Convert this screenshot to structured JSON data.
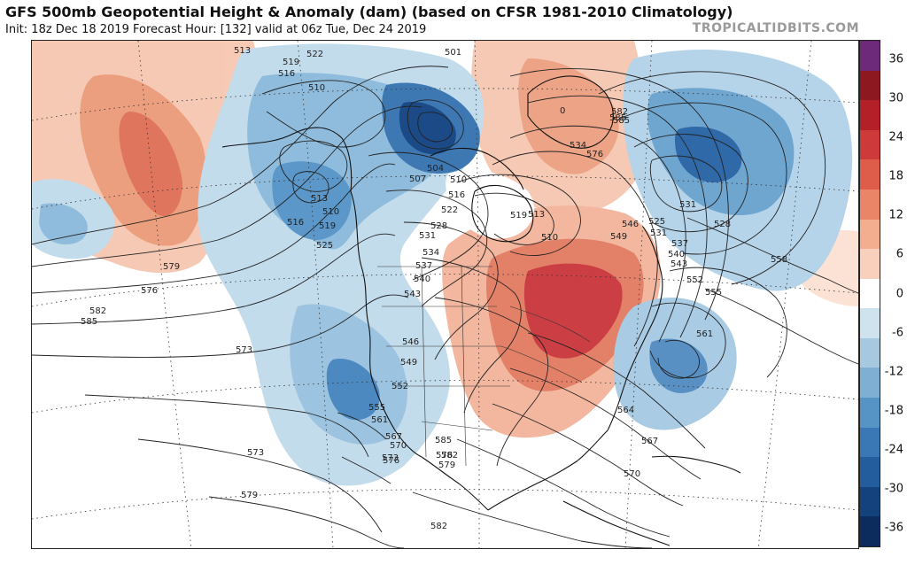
{
  "header": {
    "title": "GFS 500mb Geopotential Height & Anomaly (dam) (based on CFSR 1981-2010 Climatology)",
    "subtitle": "Init: 18z Dec 18 2019   Forecast Hour: [132]   valid at 06z Tue, Dec 24 2019",
    "brand": "TROPICALTIDBITS.COM"
  },
  "colorbar": {
    "labels": [
      "36",
      "30",
      "24",
      "18",
      "12",
      "6",
      "0",
      "-6",
      "-12",
      "-18",
      "-24",
      "-30",
      "-36"
    ],
    "colors": [
      "#6d2a7a",
      "#8e1820",
      "#b42027",
      "#cc3b3a",
      "#de5d4a",
      "#eb8567",
      "#f3ad8f",
      "#f8d0bc",
      "#ffffff",
      "#cfe3ef",
      "#a7c9e0",
      "#7fb0d4",
      "#5794c6",
      "#3a78b5",
      "#245d9e",
      "#14427d",
      "#0b2c5c"
    ]
  },
  "map": {
    "contour_labels": [
      "513",
      "519",
      "522",
      "516",
      "510",
      "501",
      "510",
      "513",
      "516",
      "519",
      "525",
      "504",
      "507",
      "510",
      "516",
      "522",
      "528",
      "531",
      "534",
      "537",
      "540",
      "543",
      "546",
      "549",
      "552",
      "555",
      "561",
      "567",
      "570",
      "573",
      "576",
      "579",
      "582",
      "585",
      "576",
      "573",
      "579",
      "582",
      "585",
      "576",
      "582",
      "585",
      "534",
      "531",
      "528",
      "525",
      "531",
      "537",
      "540",
      "543",
      "546",
      "549",
      "552",
      "555",
      "558",
      "561",
      "564",
      "567",
      "570",
      "573",
      "576",
      "579",
      "582",
      "585",
      "519",
      "513",
      "510",
      "0"
    ]
  }
}
